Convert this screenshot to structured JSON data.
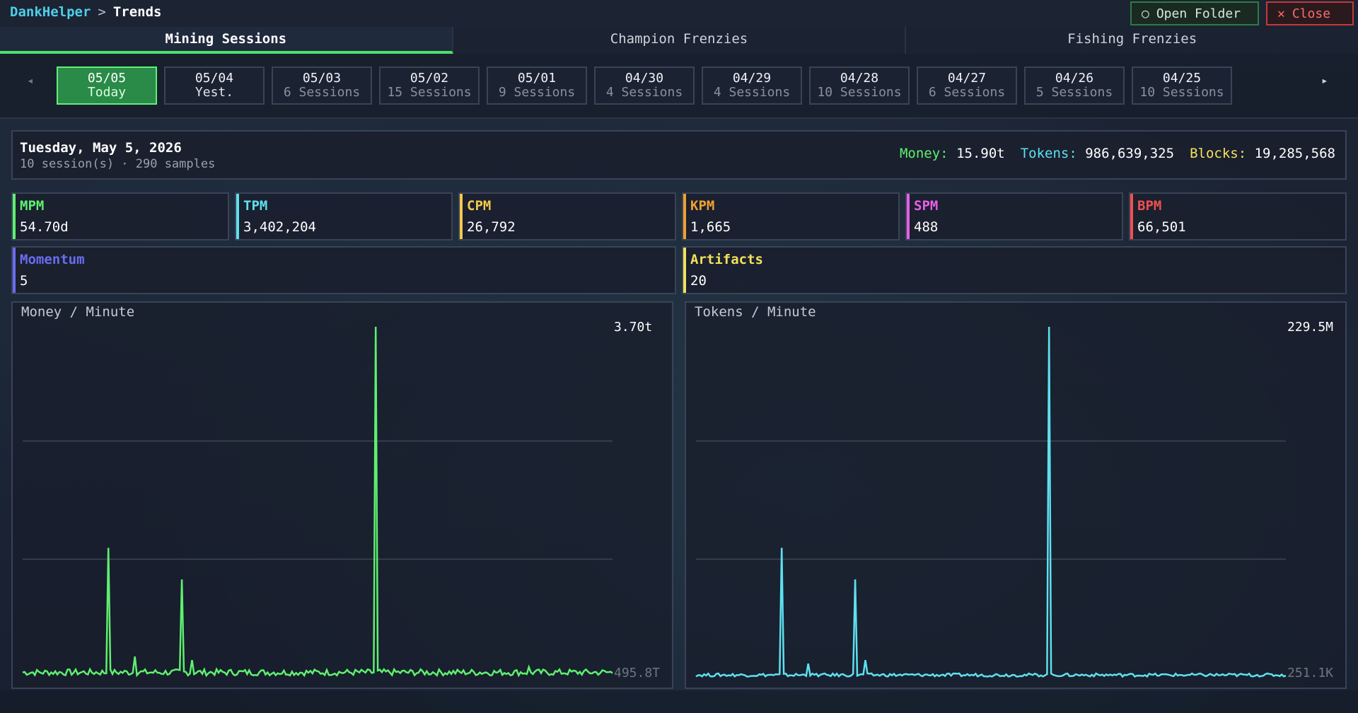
{
  "header": {
    "app": "DankHelper",
    "separator": ">",
    "page": "Trends",
    "open_folder": "Open Folder",
    "close": "Close"
  },
  "tabs": [
    "Mining Sessions",
    "Champion Frenzies",
    "Fishing Frenzies"
  ],
  "dates": [
    {
      "date": "05/05",
      "sub": "Today"
    },
    {
      "date": "05/04",
      "sub": "Yest."
    },
    {
      "date": "05/03",
      "sub": "6 Sessions"
    },
    {
      "date": "05/02",
      "sub": "15 Sessions"
    },
    {
      "date": "05/01",
      "sub": "9 Sessions"
    },
    {
      "date": "04/30",
      "sub": "4 Sessions"
    },
    {
      "date": "04/29",
      "sub": "4 Sessions"
    },
    {
      "date": "04/28",
      "sub": "10 Sessions"
    },
    {
      "date": "04/27",
      "sub": "6 Sessions"
    },
    {
      "date": "04/26",
      "sub": "5 Sessions"
    },
    {
      "date": "04/25",
      "sub": "10 Sessions"
    }
  ],
  "summary": {
    "date": "Tuesday, May 5, 2026",
    "sub": "10 session(s) · 290 samples",
    "money_label": "Money:",
    "money": "15.90t",
    "tokens_label": "Tokens:",
    "tokens": "986,639,325",
    "blocks_label": "Blocks:",
    "blocks": "19,285,568"
  },
  "stats": [
    {
      "label": "MPM",
      "value": "54.70d",
      "color": "#5ef06f"
    },
    {
      "label": "TPM",
      "value": "3,402,204",
      "color": "#5ee0f0"
    },
    {
      "label": "CPM",
      "value": "26,792",
      "color": "#f2c94c"
    },
    {
      "label": "KPM",
      "value": "1,665",
      "color": "#f0a030"
    },
    {
      "label": "SPM",
      "value": "488",
      "color": "#e85ee8"
    },
    {
      "label": "BPM",
      "value": "66,501",
      "color": "#f05050"
    },
    {
      "label": "Momentum",
      "value": "5",
      "color": "#6a6cf0"
    },
    {
      "label": "Artifacts",
      "value": "20",
      "color": "#f2e25a"
    }
  ],
  "chart_data": [
    {
      "type": "line",
      "title": "Money / Minute",
      "max_label": "3.70t",
      "min_label": "495.8T",
      "color": "#5ef06f",
      "n_points": 290,
      "baseline": 0.02,
      "spikes": [
        {
          "index": 42,
          "value": 0.37
        },
        {
          "index": 55,
          "value": 0.06
        },
        {
          "index": 78,
          "value": 0.28
        },
        {
          "index": 83,
          "value": 0.05
        },
        {
          "index": 173,
          "value": 1.0
        },
        {
          "index": 248,
          "value": 0.03
        }
      ]
    },
    {
      "type": "line",
      "title": "Tokens / Minute",
      "max_label": "229.5M",
      "min_label": "251.1K",
      "color": "#5ee0f0",
      "n_points": 290,
      "baseline": 0.01,
      "spikes": [
        {
          "index": 42,
          "value": 0.37
        },
        {
          "index": 55,
          "value": 0.04
        },
        {
          "index": 78,
          "value": 0.28
        },
        {
          "index": 83,
          "value": 0.05
        },
        {
          "index": 173,
          "value": 1.0
        }
      ]
    }
  ]
}
